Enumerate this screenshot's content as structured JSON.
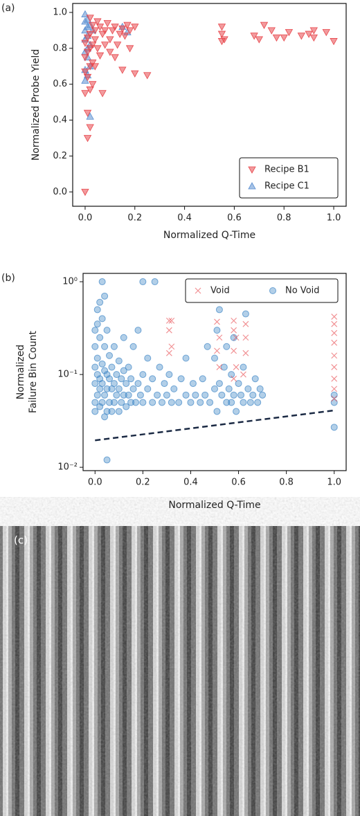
{
  "chart_data": [
    {
      "type": "scatter",
      "panel_label": "(a)",
      "xlabel": "Normalized Q-Time",
      "ylabel": "Normalized Probe Yield",
      "xlim": [
        -0.05,
        1.05
      ],
      "ylim": [
        -0.08,
        1.05
      ],
      "xticks": [
        {
          "value": 0,
          "label": "0.0"
        },
        {
          "value": 0.2,
          "label": "0.2"
        },
        {
          "value": 0.4,
          "label": "0.4"
        },
        {
          "value": 0.6,
          "label": "0.6"
        },
        {
          "value": 0.8,
          "label": "0.8"
        },
        {
          "value": 1,
          "label": "1.0"
        }
      ],
      "yticks": [
        {
          "value": 0,
          "label": "0.0"
        },
        {
          "value": 0.2,
          "label": "0.2"
        },
        {
          "value": 0.4,
          "label": "0.4"
        },
        {
          "value": 0.6,
          "label": "0.6"
        },
        {
          "value": 0.8,
          "label": "0.8"
        },
        {
          "value": 1,
          "label": "1.0"
        }
      ],
      "legend": "lower right",
      "legend_columns": 1,
      "log_y": false,
      "series": [
        {
          "name": "Recipe B1",
          "color": "#e8474c",
          "marker": "v",
          "x": [
            0.0,
            0.01,
            0.02,
            0.01,
            0.0,
            0.02,
            0.01,
            0.0,
            0.02,
            0.03,
            0.0,
            0.01,
            0.02,
            0.03,
            0.0,
            0.01,
            0.02,
            0.04,
            0.03,
            0.05,
            0.06,
            0.07,
            0.08,
            0.09,
            0.1,
            0.11,
            0.12,
            0.13,
            0.14,
            0.15,
            0.16,
            0.17,
            0.18,
            0.2,
            0.05,
            0.06,
            0.08,
            0.1,
            0.12,
            0.04,
            0.07,
            0.03,
            0.15,
            0.2,
            0.25,
            0.18,
            0.02,
            0.04,
            0.55,
            0.55,
            0.56,
            0.55,
            0.68,
            0.72,
            0.75,
            0.77,
            0.82,
            0.87,
            0.9,
            0.92,
            0.97,
            1.0,
            0.7,
            0.8,
            0.92
          ],
          "values": [
            0.0,
            0.3,
            0.36,
            0.44,
            0.55,
            0.57,
            0.64,
            0.67,
            0.7,
            0.72,
            0.75,
            0.78,
            0.8,
            0.82,
            0.83,
            0.86,
            0.88,
            0.9,
            0.93,
            0.95,
            0.92,
            0.88,
            0.9,
            0.94,
            0.85,
            0.9,
            0.92,
            0.82,
            0.88,
            0.91,
            0.87,
            0.93,
            0.9,
            0.92,
            0.8,
            0.76,
            0.82,
            0.78,
            0.75,
            0.7,
            0.55,
            0.6,
            0.68,
            0.66,
            0.65,
            0.8,
            0.97,
            0.85,
            0.92,
            0.88,
            0.85,
            0.84,
            0.87,
            0.93,
            0.9,
            0.86,
            0.89,
            0.87,
            0.88,
            0.9,
            0.89,
            0.84,
            0.85,
            0.86,
            0.86
          ]
        },
        {
          "name": "Recipe C1",
          "color": "#5b8fd1",
          "marker": "^",
          "x": [
            0.0,
            0.0,
            0.01,
            0.0,
            0.01,
            0.0,
            0.02,
            0.01,
            0.0,
            0.01,
            0.02,
            0.0,
            0.01,
            0.0,
            0.02,
            0.03,
            0.15,
            0.17,
            0.01,
            0.02
          ],
          "values": [
            0.99,
            0.95,
            0.92,
            0.9,
            0.87,
            0.85,
            0.82,
            0.8,
            0.78,
            0.75,
            0.7,
            0.68,
            0.65,
            0.62,
            0.42,
            0.9,
            0.92,
            0.89,
            0.96,
            0.93
          ]
        }
      ]
    },
    {
      "type": "scatter",
      "panel_label": "(b)",
      "xlabel": "Normalized Q-Time",
      "ylabel": [
        "Normalized",
        "Failure Bin Count"
      ],
      "xlim": [
        -0.05,
        1.05
      ],
      "ylim": [
        0.0092,
        1.23
      ],
      "log_y": true,
      "xticks": [
        {
          "value": 0,
          "label": "0.0"
        },
        {
          "value": 0.2,
          "label": "0.2"
        },
        {
          "value": 0.4,
          "label": "0.4"
        },
        {
          "value": 0.6,
          "label": "0.6"
        },
        {
          "value": 0.8,
          "label": "0.8"
        },
        {
          "value": 1,
          "label": "1.0"
        }
      ],
      "yticks": [
        {
          "value": 0.01,
          "label": "10⁻²"
        },
        {
          "value": 0.1,
          "label": "10⁻¹"
        },
        {
          "value": 1,
          "label": "10⁰"
        }
      ],
      "legend": "upper right",
      "legend_columns": 2,
      "series": [
        {
          "name": "Void",
          "color": "#e8474c",
          "marker": "x",
          "x": [
            0.31,
            0.32,
            0.31,
            0.32,
            0.31,
            0.51,
            0.52,
            0.51,
            0.52,
            0.58,
            0.58,
            0.59,
            0.58,
            0.59,
            0.58,
            0.63,
            0.63,
            0.63,
            0.62,
            1.0,
            1.0,
            1.0,
            1.0,
            1.0,
            1.0,
            1.0,
            1.0,
            1.0
          ],
          "values": [
            0.38,
            0.38,
            0.3,
            0.2,
            0.17,
            0.37,
            0.25,
            0.18,
            0.12,
            0.38,
            0.3,
            0.25,
            0.18,
            0.12,
            0.09,
            0.35,
            0.25,
            0.17,
            0.1,
            0.42,
            0.35,
            0.28,
            0.22,
            0.16,
            0.12,
            0.09,
            0.07,
            0.055
          ]
        },
        {
          "name": "No Void",
          "color": "#3f86c6",
          "marker": "o",
          "x": [
            0,
            0,
            0,
            0,
            0,
            0,
            0.01,
            0.01,
            0.01,
            0.01,
            0.01,
            0.02,
            0.02,
            0.02,
            0.02,
            0.02,
            0.03,
            0.03,
            0.03,
            0.03,
            0.03,
            0.04,
            0.04,
            0.04,
            0.04,
            0.04,
            0.05,
            0.05,
            0.05,
            0.05,
            0.05,
            0.06,
            0.06,
            0.06,
            0.07,
            0.07,
            0.07,
            0.08,
            0.08,
            0.08,
            0.09,
            0.09,
            0.1,
            0.1,
            0.1,
            0.11,
            0.11,
            0.12,
            0.12,
            0.12,
            0.13,
            0.13,
            0.14,
            0.14,
            0.15,
            0.15,
            0.16,
            0.16,
            0.17,
            0.18,
            0.18,
            0.19,
            0.2,
            0.2,
            0.2,
            0.22,
            0.22,
            0.24,
            0.24,
            0.25,
            0.26,
            0.27,
            0.28,
            0.29,
            0.3,
            0.31,
            0.32,
            0.33,
            0.35,
            0.36,
            0.38,
            0.38,
            0.4,
            0.41,
            0.42,
            0.44,
            0.45,
            0.46,
            0.47,
            0.48,
            0.5,
            0.5,
            0.51,
            0.51,
            0.52,
            0.52,
            0.53,
            0.54,
            0.55,
            0.55,
            0.56,
            0.57,
            0.57,
            0.58,
            0.58,
            0.59,
            0.6,
            0.61,
            0.62,
            0.62,
            0.63,
            0.64,
            0.65,
            0.66,
            0.67,
            0.68,
            0.69,
            0.7,
            1.0,
            1.0,
            1.0
          ],
          "values": [
            0.05,
            0.08,
            0.12,
            0.2,
            0.3,
            0.04,
            0.06,
            0.1,
            0.15,
            0.35,
            0.5,
            0.045,
            0.07,
            0.09,
            0.25,
            0.6,
            0.05,
            0.08,
            0.13,
            0.4,
            1.0,
            0.035,
            0.06,
            0.11,
            0.2,
            0.7,
            0.04,
            0.07,
            0.1,
            0.3,
            0.012,
            0.05,
            0.09,
            0.16,
            0.04,
            0.07,
            0.12,
            0.05,
            0.08,
            0.2,
            0.06,
            0.1,
            0.04,
            0.07,
            0.14,
            0.05,
            0.09,
            0.06,
            0.11,
            0.25,
            0.045,
            0.08,
            0.06,
            0.12,
            0.05,
            0.09,
            0.07,
            0.2,
            0.05,
            0.08,
            0.3,
            0.06,
            0.05,
            0.1,
            1.0,
            0.07,
            0.15,
            0.05,
            0.09,
            1.0,
            0.06,
            0.12,
            0.05,
            0.08,
            0.06,
            0.1,
            0.05,
            0.07,
            0.05,
            0.09,
            0.06,
            0.15,
            0.05,
            0.08,
            0.06,
            0.05,
            0.09,
            0.06,
            0.2,
            0.05,
            0.07,
            0.15,
            0.3,
            0.04,
            0.08,
            0.5,
            0.06,
            0.12,
            0.05,
            0.2,
            0.07,
            0.05,
            0.1,
            0.06,
            0.25,
            0.04,
            0.08,
            0.06,
            0.05,
            0.12,
            0.45,
            0.07,
            0.05,
            0.06,
            0.09,
            0.05,
            0.07,
            0.06,
            0.027,
            0.05,
            0.06
          ]
        }
      ],
      "trend": {
        "color": "#1b2a44",
        "x": [
          0,
          1
        ],
        "y": [
          0.0195,
          0.041
        ]
      }
    }
  ],
  "image": {
    "label": "(c)"
  }
}
